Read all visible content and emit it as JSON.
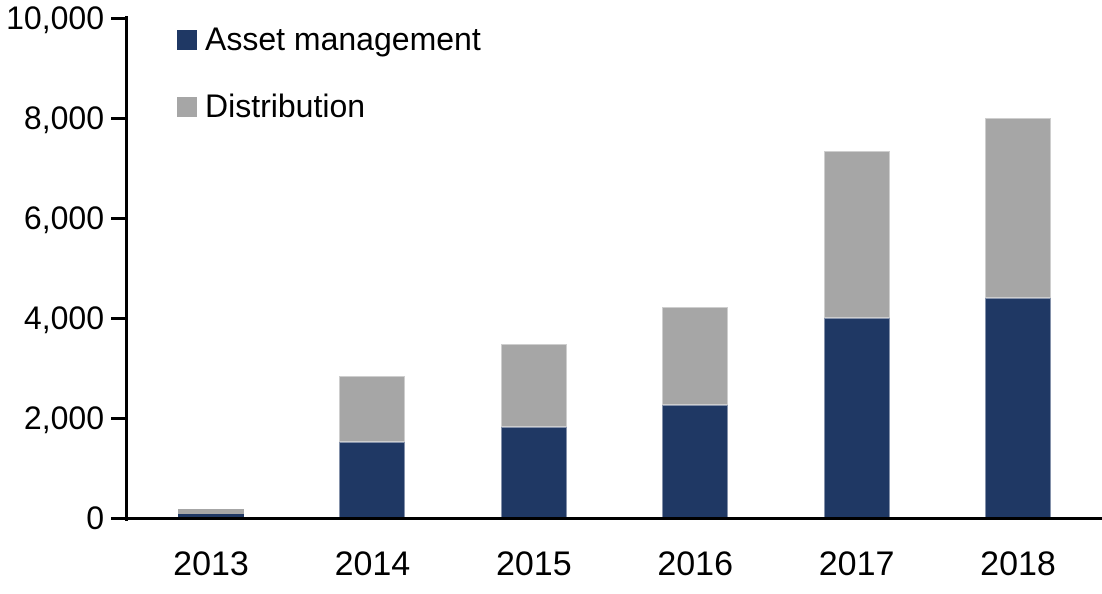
{
  "chart_data": {
    "type": "bar",
    "stacked": true,
    "title": "",
    "categories": [
      "2013",
      "2014",
      "2015",
      "2016",
      "2017",
      "2018"
    ],
    "series": [
      {
        "name": "Asset management",
        "color": "#1f3864",
        "values": [
          80,
          1520,
          1830,
          2270,
          4010,
          4400
        ]
      },
      {
        "name": "Distribution",
        "color": "#a6a6a6",
        "values": [
          100,
          1320,
          1650,
          1950,
          3340,
          3600
        ]
      }
    ],
    "totals": [
      180,
      2840,
      3480,
      4220,
      7350,
      8000
    ],
    "ylim": [
      0,
      10000
    ],
    "ytick_interval": 2000,
    "ytick_labels": [
      "0",
      "2,000",
      "4,000",
      "6,000",
      "8,000",
      "10,000"
    ],
    "xlabel": "",
    "ylabel": "",
    "grid": false,
    "legend_position": "top-left",
    "axis_color": "#000000",
    "text_color": "#000000"
  }
}
